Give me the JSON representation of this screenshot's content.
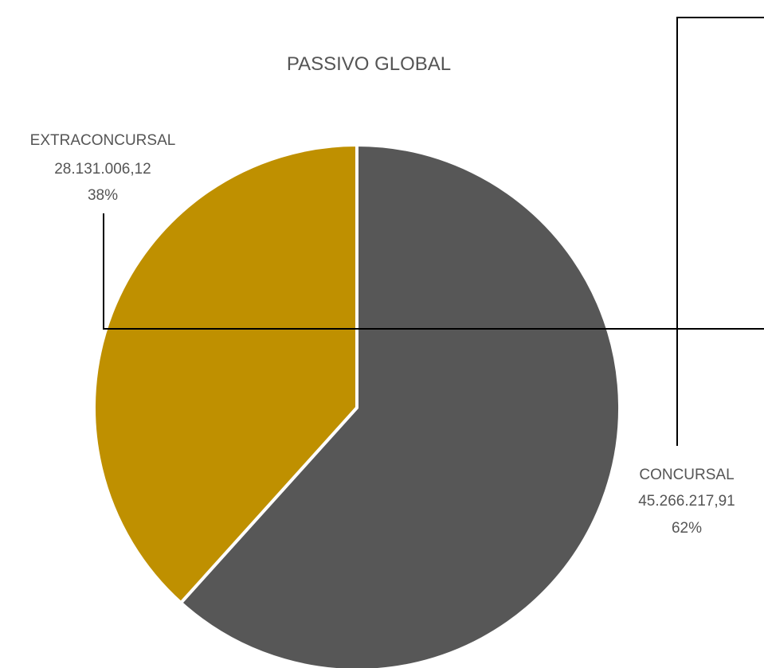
{
  "chart_data": {
    "type": "pie",
    "title": "PASSIVO GLOBAL",
    "slices": [
      {
        "label": "CONCURSAL",
        "value": 45266217.91,
        "value_text": "45.266.217,91",
        "percent_text": "62%",
        "color": "#575757"
      },
      {
        "label": "EXTRACONCURSAL",
        "value": 28131006.12,
        "value_text": "28.131.006,12",
        "percent_text": "38%",
        "color": "#BF9000"
      }
    ],
    "start_angle_deg": 0,
    "direction": "clockwise",
    "slice_border_color": "#ffffff",
    "leader_line_color": "#000000",
    "legend": "none"
  }
}
